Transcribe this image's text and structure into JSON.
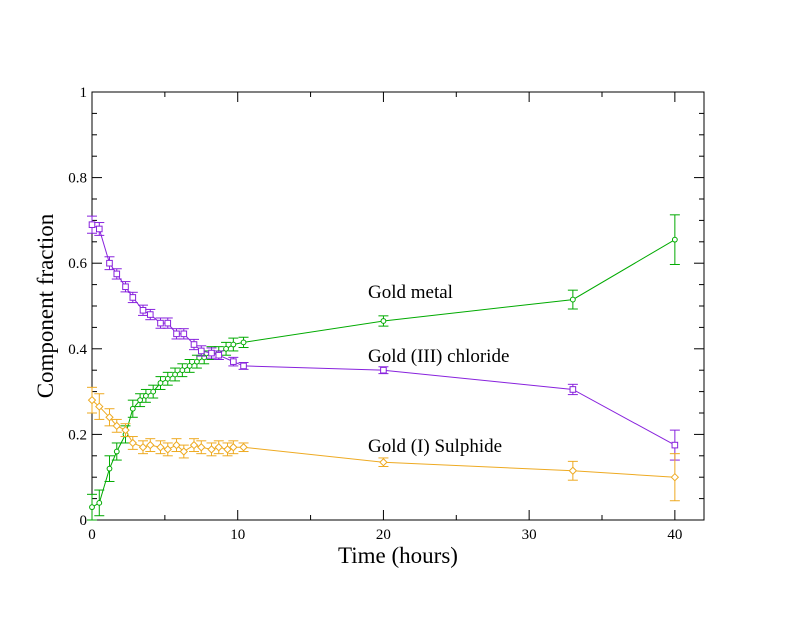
{
  "chart_data": {
    "type": "scatter",
    "title": "",
    "xlabel": "Time (hours)",
    "ylabel": "Component fraction",
    "xlim": [
      0,
      42
    ],
    "ylim": [
      0,
      1
    ],
    "grid": false,
    "x_ticks": [
      0,
      10,
      20,
      30,
      40
    ],
    "y_ticks": [
      0,
      0.2,
      0.4,
      0.6,
      0.8,
      1
    ],
    "x_tick_labels": [
      "0",
      "10",
      "20",
      "30",
      "40"
    ],
    "y_tick_labels": [
      "0",
      "0.2",
      "0.4",
      "0.6",
      "0.8",
      "1"
    ],
    "annotations": [
      {
        "text": "Gold metal",
        "color": "#000000"
      },
      {
        "text": "Gold (III) chloride",
        "color": "#000000"
      },
      {
        "text": "Gold (I) Sulphide",
        "color": "#000000"
      }
    ],
    "series": [
      {
        "color": "#00aa00",
        "marker": "circle",
        "x": [
          0.0,
          0.5,
          1.2,
          1.7,
          2.3,
          2.8,
          3.3,
          3.7,
          4.2,
          4.7,
          5.2,
          5.7,
          6.2,
          6.7,
          7.2,
          7.7,
          8.2,
          8.7,
          9.2,
          9.7,
          10.4,
          20.0,
          33.0,
          40.0
        ],
        "y": [
          0.03,
          0.04,
          0.12,
          0.16,
          0.2,
          0.26,
          0.28,
          0.29,
          0.3,
          0.32,
          0.33,
          0.34,
          0.35,
          0.36,
          0.37,
          0.38,
          0.39,
          0.39,
          0.4,
          0.41,
          0.415,
          0.465,
          0.515,
          0.655
        ],
        "err": [
          0.03,
          0.03,
          0.03,
          0.02,
          0.02,
          0.02,
          0.015,
          0.015,
          0.015,
          0.015,
          0.015,
          0.015,
          0.015,
          0.015,
          0.015,
          0.015,
          0.015,
          0.015,
          0.015,
          0.015,
          0.012,
          0.012,
          0.022,
          0.058
        ]
      },
      {
        "color": "#8822dd",
        "marker": "square",
        "x": [
          0.0,
          0.5,
          1.2,
          1.7,
          2.3,
          2.8,
          3.5,
          4.0,
          4.7,
          5.2,
          5.8,
          6.3,
          7.0,
          7.5,
          8.2,
          8.7,
          9.7,
          10.4,
          20.0,
          33.0,
          40.0
        ],
        "y": [
          0.69,
          0.68,
          0.6,
          0.575,
          0.545,
          0.52,
          0.49,
          0.48,
          0.46,
          0.46,
          0.435,
          0.435,
          0.41,
          0.395,
          0.39,
          0.385,
          0.37,
          0.36,
          0.35,
          0.305,
          0.175
        ],
        "err": [
          0.02,
          0.015,
          0.015,
          0.012,
          0.012,
          0.012,
          0.012,
          0.012,
          0.012,
          0.012,
          0.012,
          0.012,
          0.012,
          0.012,
          0.012,
          0.01,
          0.01,
          0.008,
          0.008,
          0.012,
          0.035
        ]
      },
      {
        "color": "#eeaa22",
        "marker": "diamond",
        "x": [
          0.0,
          0.5,
          1.2,
          1.7,
          2.3,
          2.8,
          3.5,
          4.0,
          4.7,
          5.2,
          5.8,
          6.3,
          7.0,
          7.5,
          8.2,
          8.7,
          9.3,
          9.7,
          10.4,
          20.0,
          33.0,
          40.0
        ],
        "y": [
          0.28,
          0.265,
          0.24,
          0.22,
          0.21,
          0.18,
          0.17,
          0.175,
          0.17,
          0.165,
          0.175,
          0.16,
          0.175,
          0.17,
          0.165,
          0.17,
          0.165,
          0.17,
          0.17,
          0.135,
          0.115,
          0.1
        ],
        "err": [
          0.03,
          0.03,
          0.02,
          0.015,
          0.015,
          0.015,
          0.015,
          0.015,
          0.015,
          0.015,
          0.015,
          0.015,
          0.015,
          0.015,
          0.015,
          0.015,
          0.015,
          0.015,
          0.01,
          0.01,
          0.022,
          0.055
        ]
      }
    ]
  }
}
